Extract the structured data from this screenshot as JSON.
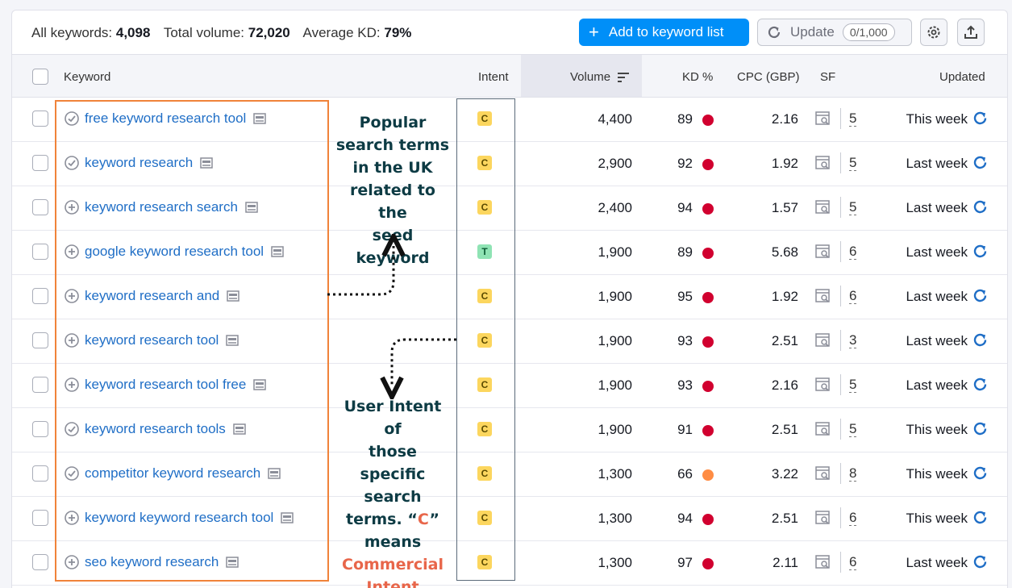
{
  "summary": {
    "all_keywords_label": "All keywords:",
    "all_keywords_value": "4,098",
    "total_volume_label": "Total volume:",
    "total_volume_value": "72,020",
    "avg_kd_label": "Average KD:",
    "avg_kd_value": "79%"
  },
  "toolbar": {
    "add_label": "Add to keyword list",
    "update_label": "Update",
    "update_counter": "0/1,000",
    "settings_icon": "gear-icon",
    "export_icon": "export-icon"
  },
  "columns": {
    "keyword": "Keyword",
    "intent": "Intent",
    "volume": "Volume",
    "kd": "KD %",
    "cpc": "CPC (GBP)",
    "sf": "SF",
    "updated": "Updated"
  },
  "colors": {
    "accent": "#008ff8",
    "link": "#1f6ec6",
    "kd_high": "#d1002f",
    "kd_medium": "#ff8c43",
    "intent_commercial": "#fcd65e",
    "intent_transactional": "#8fe3b4"
  },
  "rows": [
    {
      "keyword": "free keyword research tool",
      "status": "check",
      "intent": "C",
      "volume": "4,400",
      "kd": "89",
      "kd_level": "high",
      "cpc": "2.16",
      "sf": "5",
      "updated": "This week"
    },
    {
      "keyword": "keyword research",
      "status": "check",
      "intent": "C",
      "volume": "2,900",
      "kd": "92",
      "kd_level": "high",
      "cpc": "1.92",
      "sf": "5",
      "updated": "Last week"
    },
    {
      "keyword": "keyword research search",
      "status": "add",
      "intent": "C",
      "volume": "2,400",
      "kd": "94",
      "kd_level": "high",
      "cpc": "1.57",
      "sf": "5",
      "updated": "Last week"
    },
    {
      "keyword": "google keyword research tool",
      "status": "add",
      "intent": "T",
      "volume": "1,900",
      "kd": "89",
      "kd_level": "high",
      "cpc": "5.68",
      "sf": "6",
      "updated": "Last week"
    },
    {
      "keyword": "keyword research and",
      "status": "add",
      "intent": "C",
      "volume": "1,900",
      "kd": "95",
      "kd_level": "high",
      "cpc": "1.92",
      "sf": "6",
      "updated": "Last week"
    },
    {
      "keyword": "keyword research tool",
      "status": "add",
      "intent": "C",
      "volume": "1,900",
      "kd": "93",
      "kd_level": "high",
      "cpc": "2.51",
      "sf": "3",
      "updated": "Last week"
    },
    {
      "keyword": "keyword research tool free",
      "status": "add",
      "intent": "C",
      "volume": "1,900",
      "kd": "93",
      "kd_level": "high",
      "cpc": "2.16",
      "sf": "5",
      "updated": "Last week"
    },
    {
      "keyword": "keyword research tools",
      "status": "check",
      "intent": "C",
      "volume": "1,900",
      "kd": "91",
      "kd_level": "high",
      "cpc": "2.51",
      "sf": "5",
      "updated": "This week"
    },
    {
      "keyword": "competitor keyword research",
      "status": "check",
      "intent": "C",
      "volume": "1,300",
      "kd": "66",
      "kd_level": "medium",
      "cpc": "3.22",
      "sf": "8",
      "updated": "This week"
    },
    {
      "keyword": "keyword keyword research tool",
      "status": "add",
      "intent": "C",
      "volume": "1,300",
      "kd": "94",
      "kd_level": "high",
      "cpc": "2.51",
      "sf": "6",
      "updated": "This week"
    },
    {
      "keyword": "seo keyword research",
      "status": "add",
      "intent": "C",
      "volume": "1,300",
      "kd": "97",
      "kd_level": "high",
      "cpc": "2.11",
      "sf": "6",
      "updated": "Last week"
    }
  ],
  "annotations": {
    "top": [
      "Popular",
      "search terms",
      "in the UK",
      "related to the",
      "seed",
      "keyword"
    ],
    "bottom_lines": [
      "User Intent of",
      "those",
      "specific",
      "search"
    ],
    "bottom_pre": "terms. “",
    "bottom_letter": "C",
    "bottom_post": "”",
    "bottom_means": "means",
    "bottom_accent": [
      "Commercial",
      "Intent"
    ]
  }
}
